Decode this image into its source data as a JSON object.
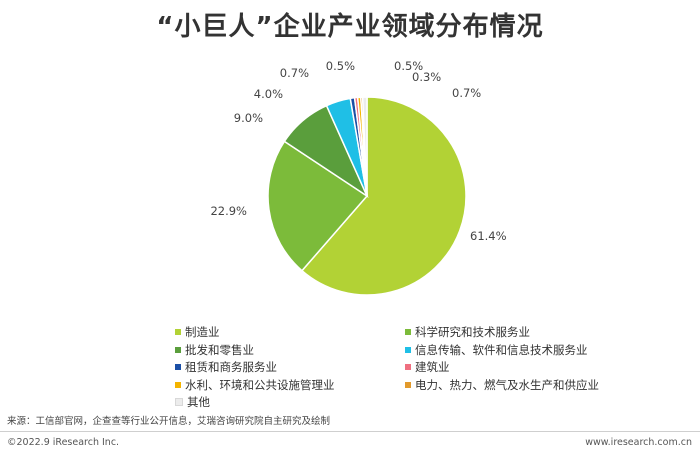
{
  "chart_data": {
    "type": "pie",
    "title": "“小巨人”企业产业领域分布情况",
    "start_angle_deg": 0,
    "direction": "clockwise",
    "legend_position": "bottom",
    "slices": [
      {
        "label": "制造业",
        "value": 61.4,
        "display": "61.4%",
        "color": "#b2d235"
      },
      {
        "label": "科学研究和技术服务业",
        "value": 22.9,
        "display": "22.9%",
        "color": "#7cbb3a"
      },
      {
        "label": "批发和零售业",
        "value": 9.0,
        "display": "9.0%",
        "color": "#5a9e3c"
      },
      {
        "label": "信息传输、软件和信息技术服务业",
        "value": 4.0,
        "display": "4.0%",
        "color": "#1fbfe6"
      },
      {
        "label": "租赁和商务服务业",
        "value": 0.7,
        "display": "0.7%",
        "color": "#1b4fa6"
      },
      {
        "label": "建筑业",
        "value": 0.5,
        "display": "0.5%",
        "color": "#ef6f80"
      },
      {
        "label": "水利、环境和公共设施管理业",
        "value": 0.5,
        "display": "0.5%",
        "color": "#f4b400"
      },
      {
        "label": "电力、热力、燃气及水生产和供应业",
        "value": 0.3,
        "display": "0.3%",
        "color": "#e29a2c"
      },
      {
        "label": "其他",
        "value": 0.7,
        "display": "0.7%",
        "color": "#ececec"
      }
    ]
  },
  "source": "来源：工信部官网，企查查等行业公开信息，艾瑞咨询研究院自主研究及绘制",
  "copyright": "©2022.9 iResearch Inc.",
  "site": "www.iresearch.com.cn"
}
